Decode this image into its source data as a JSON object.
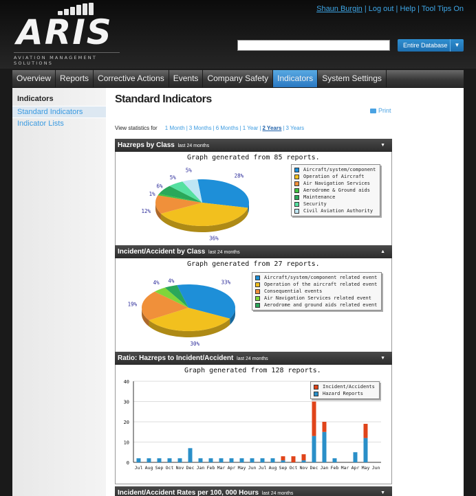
{
  "header": {
    "logo_text": "ARIS",
    "tagline": "AVIATION MANAGEMENT SOLUTIONS",
    "user": "Shaun Burgin",
    "links": [
      "Log out",
      "Help",
      "Tool Tips On"
    ],
    "search_value": "",
    "scope": "Entire Database"
  },
  "nav": {
    "tabs": [
      {
        "label": "Overview",
        "active": false
      },
      {
        "label": "Reports",
        "active": false
      },
      {
        "label": "Corrective Actions",
        "active": false
      },
      {
        "label": "Events",
        "active": false
      },
      {
        "label": "Company Safety",
        "active": false
      },
      {
        "label": "Indicators",
        "active": true
      },
      {
        "label": "System Settings",
        "active": false
      }
    ]
  },
  "sidebar": {
    "title": "Indicators",
    "items": [
      {
        "label": "Standard Indicators",
        "active": true
      },
      {
        "label": "Indicator Lists",
        "active": false
      }
    ]
  },
  "main": {
    "title": "Standard Indicators",
    "print_label": "Print",
    "period_label": "View statistics for",
    "periods": [
      {
        "label": "1 Month",
        "selected": false
      },
      {
        "label": "3 Months",
        "selected": false
      },
      {
        "label": "6 Months",
        "selected": false
      },
      {
        "label": "1 Year",
        "selected": false
      },
      {
        "label": "2 Years",
        "selected": true
      },
      {
        "label": "3 Years",
        "selected": false
      }
    ]
  },
  "panels": [
    {
      "title": "Hazreps by Class",
      "subtitle": "last 24 months",
      "toggle": "▼",
      "caption": "Graph generated from 85 reports."
    },
    {
      "title": "Incident/Accident by Class",
      "subtitle": "last 24 months",
      "toggle": "▲",
      "caption": "Graph generated from 27 reports."
    },
    {
      "title": "Ratio: Hazreps to Incident/Accident",
      "subtitle": "last 24 months",
      "toggle": "▼",
      "caption": "Graph generated from 128 reports."
    },
    {
      "title": "Incident/Accident Rates per 100, 000 Hours",
      "subtitle": "last 24 months",
      "toggle": "▼"
    }
  ],
  "chart_data": [
    {
      "type": "pie",
      "title": "Graph generated from 85 reports.",
      "labels": [
        "Aircraft/system/component",
        "Operation of Aircraft",
        "Air Navigation Services",
        "Aerodrome & Ground aids",
        "Maintenance",
        "Security",
        "Civil Aviation Authority"
      ],
      "values": [
        28,
        36,
        12,
        1,
        6,
        5,
        5
      ],
      "colors": [
        "#1e8fd8",
        "#f2c01e",
        "#f0903a",
        "#3fc23f",
        "#2aa85a",
        "#55e0a0",
        "#bfe6f4"
      ],
      "value_labels": [
        "28%",
        "36%",
        "12%",
        "1%",
        "6%",
        "5%",
        "5%"
      ],
      "legend": "right"
    },
    {
      "type": "pie",
      "title": "Graph generated from 27 reports.",
      "labels": [
        "Aircraft/system/component related event",
        "Operation of the aircraft related event",
        "Consequential events",
        "Air Navigation Services related event",
        "Aerodrome and ground aids related event"
      ],
      "values": [
        33,
        30,
        19,
        4,
        4
      ],
      "colors": [
        "#1e8fd8",
        "#f2c01e",
        "#f0903a",
        "#7fd63a",
        "#2aa85a"
      ],
      "value_labels": [
        "33%",
        "30%",
        "19%",
        "4%",
        "4%"
      ],
      "legend": "right"
    },
    {
      "type": "bar",
      "title": "Graph generated from 128 reports.",
      "categories": [
        "Jul",
        "Aug",
        "Sep",
        "Oct",
        "Nov",
        "Dec",
        "Jan",
        "Feb",
        "Mar",
        "Apr",
        "May",
        "Jun",
        "Jul",
        "Aug",
        "Sep",
        "Oct",
        "Nov",
        "Dec",
        "Jan",
        "Feb",
        "Mar",
        "Apr",
        "May",
        "Jun"
      ],
      "series": [
        {
          "name": "Incident/Accidents",
          "color": "#e0441a",
          "values": [
            0,
            0,
            0,
            0,
            0,
            0,
            0,
            0,
            0,
            0,
            0,
            0,
            0,
            0,
            2,
            3,
            3,
            17,
            5,
            0,
            0,
            0,
            7,
            0
          ]
        },
        {
          "name": "Hazard Reports",
          "color": "#2a8fc8",
          "values": [
            2,
            2,
            2,
            2,
            2,
            7,
            2,
            2,
            2,
            2,
            2,
            2,
            2,
            2,
            1,
            0,
            1,
            13,
            15,
            2,
            0,
            5,
            12,
            0
          ]
        }
      ],
      "stacked": true,
      "ylim": [
        0,
        40
      ],
      "yticks": [
        0,
        10,
        20,
        30,
        40
      ],
      "legend": "top-right"
    }
  ]
}
